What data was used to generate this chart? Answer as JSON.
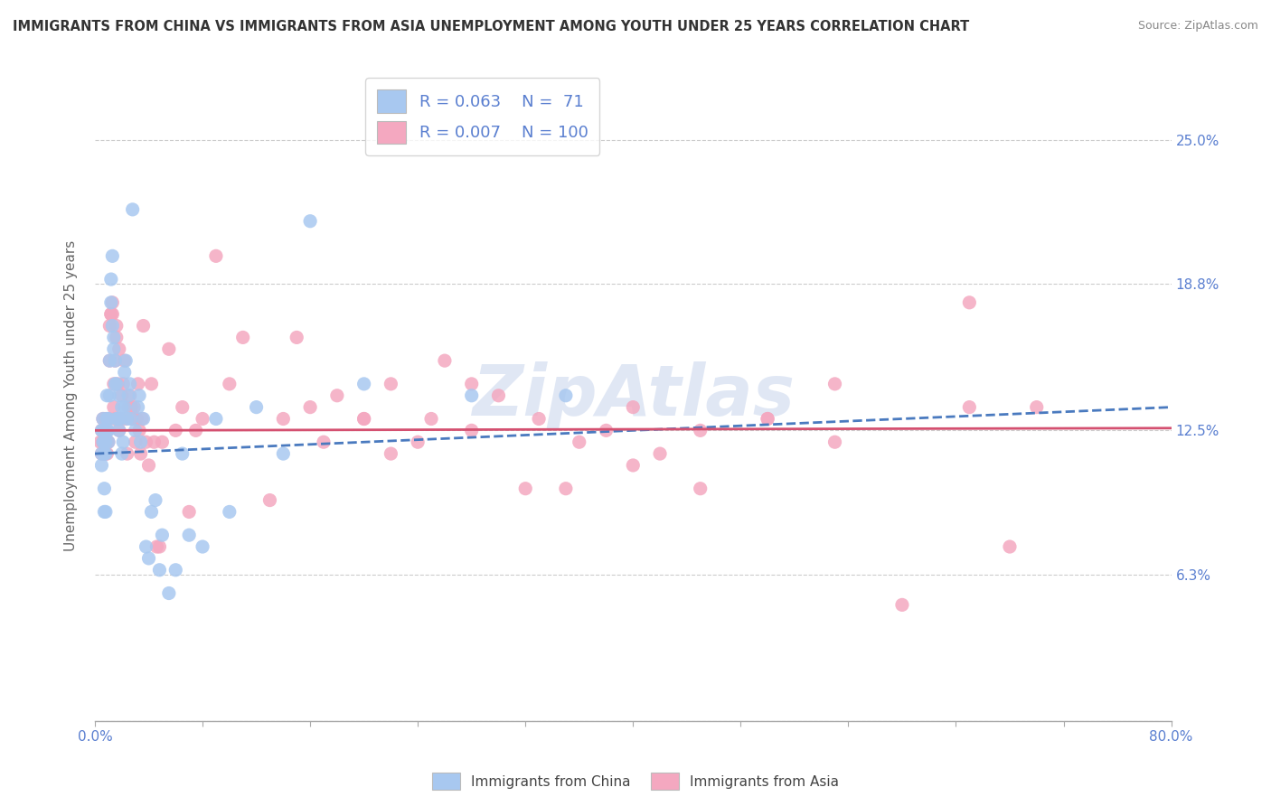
{
  "title": "IMMIGRANTS FROM CHINA VS IMMIGRANTS FROM ASIA UNEMPLOYMENT AMONG YOUTH UNDER 25 YEARS CORRELATION CHART",
  "source": "Source: ZipAtlas.com",
  "ylabel": "Unemployment Among Youth under 25 years",
  "xlim": [
    0.0,
    0.8
  ],
  "ylim": [
    0.0,
    0.28
  ],
  "yticks": [
    0.0,
    0.063,
    0.125,
    0.188,
    0.25
  ],
  "ytick_labels": [
    "",
    "6.3%",
    "12.5%",
    "18.8%",
    "25.0%"
  ],
  "xtick_positions": [
    0.0,
    0.08,
    0.16,
    0.24,
    0.32,
    0.4,
    0.48,
    0.56,
    0.64,
    0.72,
    0.8
  ],
  "xlabels_show": {
    "0.0": "0.0%",
    "0.80": "80.0%"
  },
  "china_color": "#a8c8f0",
  "asia_color": "#f4a8c0",
  "china_R": 0.063,
  "china_N": 71,
  "asia_R": 0.007,
  "asia_N": 100,
  "trend_china_color": "#4a7abf",
  "trend_asia_color": "#d45070",
  "trend_china_x0": 0.0,
  "trend_china_x1": 0.8,
  "trend_china_y0": 0.115,
  "trend_china_y1": 0.135,
  "trend_asia_x0": 0.0,
  "trend_asia_x1": 0.8,
  "trend_asia_y0": 0.125,
  "trend_asia_y1": 0.126,
  "legend_text_color": "#5a7fd0",
  "watermark": "ZipAtlas",
  "china_scatter_x": [
    0.005,
    0.005,
    0.005,
    0.006,
    0.006,
    0.006,
    0.007,
    0.007,
    0.007,
    0.007,
    0.008,
    0.008,
    0.008,
    0.008,
    0.009,
    0.009,
    0.009,
    0.01,
    0.01,
    0.01,
    0.011,
    0.011,
    0.012,
    0.012,
    0.013,
    0.013,
    0.014,
    0.014,
    0.015,
    0.015,
    0.016,
    0.016,
    0.017,
    0.018,
    0.018,
    0.019,
    0.02,
    0.02,
    0.021,
    0.022,
    0.022,
    0.023,
    0.024,
    0.025,
    0.026,
    0.027,
    0.028,
    0.03,
    0.032,
    0.033,
    0.034,
    0.036,
    0.038,
    0.04,
    0.042,
    0.045,
    0.048,
    0.05,
    0.055,
    0.06,
    0.065,
    0.07,
    0.08,
    0.09,
    0.1,
    0.12,
    0.14,
    0.16,
    0.2,
    0.28,
    0.35
  ],
  "china_scatter_y": [
    0.125,
    0.115,
    0.11,
    0.12,
    0.125,
    0.13,
    0.12,
    0.115,
    0.1,
    0.09,
    0.125,
    0.12,
    0.115,
    0.09,
    0.13,
    0.14,
    0.125,
    0.13,
    0.125,
    0.12,
    0.14,
    0.155,
    0.18,
    0.19,
    0.17,
    0.2,
    0.165,
    0.16,
    0.155,
    0.145,
    0.13,
    0.145,
    0.13,
    0.125,
    0.14,
    0.13,
    0.135,
    0.115,
    0.12,
    0.135,
    0.15,
    0.155,
    0.13,
    0.14,
    0.145,
    0.13,
    0.22,
    0.125,
    0.135,
    0.14,
    0.12,
    0.13,
    0.075,
    0.07,
    0.09,
    0.095,
    0.065,
    0.08,
    0.055,
    0.065,
    0.115,
    0.08,
    0.075,
    0.13,
    0.09,
    0.135,
    0.115,
    0.215,
    0.145,
    0.14,
    0.14
  ],
  "asia_scatter_x": [
    0.004,
    0.005,
    0.005,
    0.006,
    0.006,
    0.007,
    0.007,
    0.007,
    0.008,
    0.008,
    0.008,
    0.009,
    0.009,
    0.009,
    0.01,
    0.01,
    0.011,
    0.011,
    0.012,
    0.012,
    0.013,
    0.013,
    0.014,
    0.014,
    0.015,
    0.015,
    0.016,
    0.016,
    0.017,
    0.018,
    0.018,
    0.019,
    0.02,
    0.021,
    0.022,
    0.023,
    0.024,
    0.025,
    0.026,
    0.027,
    0.028,
    0.029,
    0.03,
    0.031,
    0.032,
    0.033,
    0.034,
    0.035,
    0.036,
    0.038,
    0.04,
    0.042,
    0.044,
    0.046,
    0.048,
    0.05,
    0.055,
    0.06,
    0.065,
    0.07,
    0.075,
    0.08,
    0.09,
    0.1,
    0.11,
    0.13,
    0.15,
    0.17,
    0.2,
    0.22,
    0.25,
    0.28,
    0.32,
    0.35,
    0.4,
    0.45,
    0.5,
    0.55,
    0.6,
    0.65,
    0.55,
    0.5,
    0.45,
    0.4,
    0.65,
    0.68,
    0.7,
    0.42,
    0.38,
    0.36,
    0.33,
    0.3,
    0.28,
    0.26,
    0.24,
    0.22,
    0.2,
    0.18,
    0.16,
    0.14
  ],
  "asia_scatter_y": [
    0.12,
    0.125,
    0.115,
    0.13,
    0.12,
    0.125,
    0.115,
    0.12,
    0.13,
    0.115,
    0.12,
    0.125,
    0.12,
    0.115,
    0.13,
    0.12,
    0.17,
    0.155,
    0.175,
    0.175,
    0.175,
    0.18,
    0.135,
    0.145,
    0.155,
    0.13,
    0.17,
    0.165,
    0.145,
    0.16,
    0.125,
    0.13,
    0.14,
    0.145,
    0.155,
    0.13,
    0.115,
    0.135,
    0.14,
    0.135,
    0.13,
    0.135,
    0.12,
    0.13,
    0.145,
    0.125,
    0.115,
    0.13,
    0.17,
    0.12,
    0.11,
    0.145,
    0.12,
    0.075,
    0.075,
    0.12,
    0.16,
    0.125,
    0.135,
    0.09,
    0.125,
    0.13,
    0.2,
    0.145,
    0.165,
    0.095,
    0.165,
    0.12,
    0.13,
    0.145,
    0.13,
    0.125,
    0.1,
    0.1,
    0.135,
    0.1,
    0.13,
    0.12,
    0.05,
    0.135,
    0.145,
    0.13,
    0.125,
    0.11,
    0.18,
    0.075,
    0.135,
    0.115,
    0.125,
    0.12,
    0.13,
    0.14,
    0.145,
    0.155,
    0.12,
    0.115,
    0.13,
    0.14,
    0.135,
    0.13
  ]
}
